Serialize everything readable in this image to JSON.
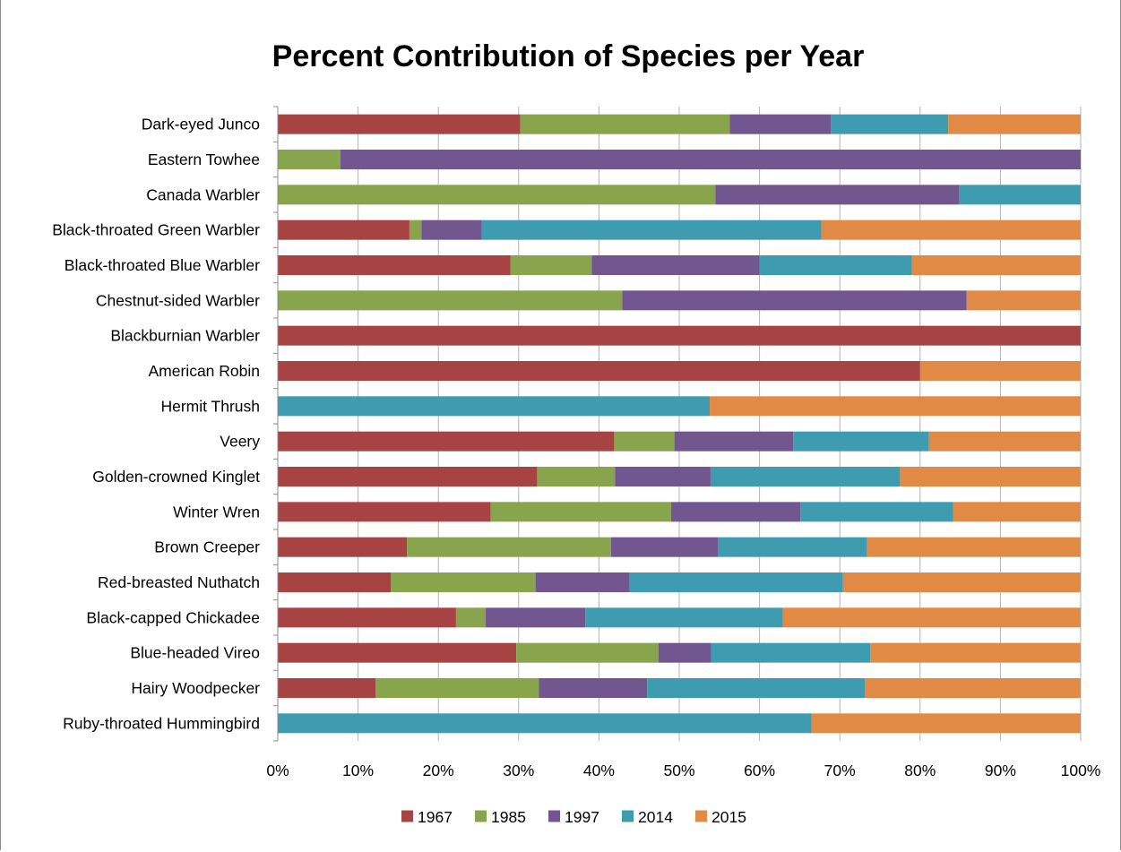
{
  "chart_data": {
    "type": "bar",
    "orientation": "horizontal",
    "stacked": "percent",
    "title": "Percent Contribution of Species per Year",
    "categories": [
      "Dark-eyed Junco",
      "Eastern Towhee",
      "Canada Warbler",
      "Black-throated Green Warbler",
      "Black-throated Blue Warbler",
      "Chestnut-sided Warbler",
      "Blackburnian Warbler",
      "American Robin",
      "Hermit Thrush",
      "Veery",
      "Golden-crowned Kinglet",
      "Winter Wren",
      "Brown Creeper",
      "Red-breasted Nuthatch",
      "Black-capped Chickadee",
      "Blue-headed Vireo",
      "Hairy Woodpecker",
      "Ruby-throated Hummingbird"
    ],
    "series": [
      {
        "name": "1967",
        "color": "#a84343",
        "values": [
          30.2,
          0,
          0,
          16.4,
          29,
          0,
          100,
          80,
          0,
          41.9,
          32.3,
          26.5,
          16.1,
          14.1,
          22.2,
          29.7,
          12.2,
          0
        ]
      },
      {
        "name": "1985",
        "color": "#88a44c",
        "values": [
          26.1,
          7.8,
          54.5,
          1.5,
          10.1,
          42.9,
          0,
          0,
          0,
          7.5,
          9.7,
          22.5,
          25.4,
          18,
          3.7,
          17.7,
          20.3,
          0
        ]
      },
      {
        "name": "1997",
        "color": "#715690",
        "values": [
          12.6,
          92.2,
          30.4,
          7.5,
          20.9,
          42.9,
          0,
          0,
          0,
          14.8,
          11.9,
          16.1,
          13.3,
          11.7,
          12.4,
          6.6,
          13.5,
          0
        ]
      },
      {
        "name": "2014",
        "color": "#3f9bb0",
        "values": [
          14.6,
          0,
          15.1,
          42.3,
          19,
          0,
          0,
          0,
          53.8,
          16.9,
          23.6,
          19,
          18.6,
          26.6,
          24.6,
          19.8,
          27.1,
          66.5
        ]
      },
      {
        "name": "2015",
        "color": "#e08a45",
        "values": [
          16.5,
          0,
          0,
          32.3,
          21,
          14.2,
          0,
          20,
          46.2,
          18.9,
          22.5,
          15.9,
          26.6,
          29.6,
          37.1,
          26.2,
          26.9,
          33.5
        ]
      }
    ],
    "x_ticks": [
      "0%",
      "10%",
      "20%",
      "30%",
      "40%",
      "50%",
      "60%",
      "70%",
      "80%",
      "90%",
      "100%"
    ],
    "xlim": [
      0,
      100
    ],
    "grid": true,
    "legend_position": "bottom"
  }
}
